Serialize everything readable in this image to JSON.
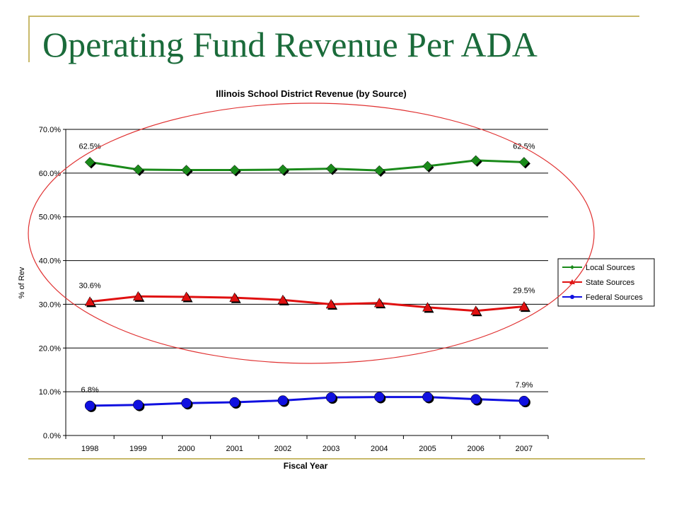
{
  "slide": {
    "title": "Operating Fund Revenue Per ADA"
  },
  "chart_data": {
    "type": "line",
    "title": "Illinois School District Revenue (by Source)",
    "xlabel": "Fiscal Year",
    "ylabel": "% of Rev",
    "categories": [
      "1998",
      "1999",
      "2000",
      "2001",
      "2002",
      "2003",
      "2004",
      "2005",
      "2006",
      "2007"
    ],
    "y_ticks": [
      "0.0%",
      "10.0%",
      "20.0%",
      "30.0%",
      "40.0%",
      "50.0%",
      "60.0%",
      "70.0%"
    ],
    "ylim": [
      0,
      70
    ],
    "grid": "horizontal",
    "legend_position": "right",
    "series": [
      {
        "name": "Local Sources",
        "color": "#1a8a1a",
        "marker": "diamond",
        "values": [
          62.5,
          60.8,
          60.7,
          60.7,
          60.8,
          61.0,
          60.6,
          61.6,
          62.9,
          62.5
        ],
        "start_label": "62.5%",
        "end_label": "62.5%"
      },
      {
        "name": "State Sources",
        "color": "#e01010",
        "marker": "triangle",
        "values": [
          30.6,
          31.8,
          31.7,
          31.5,
          31.0,
          30.0,
          30.3,
          29.3,
          28.5,
          29.5
        ],
        "start_label": "30.6%",
        "end_label": "29.5%"
      },
      {
        "name": "Federal Sources",
        "color": "#1010e0",
        "marker": "circle",
        "values": [
          6.8,
          7.0,
          7.4,
          7.6,
          8.0,
          8.7,
          8.8,
          8.8,
          8.3,
          7.9
        ],
        "start_label": "6.8%",
        "end_label": "7.9%"
      }
    ],
    "annotation": {
      "shape": "ellipse",
      "color": "#e03030",
      "encloses": [
        "Local Sources",
        "State Sources"
      ]
    }
  }
}
